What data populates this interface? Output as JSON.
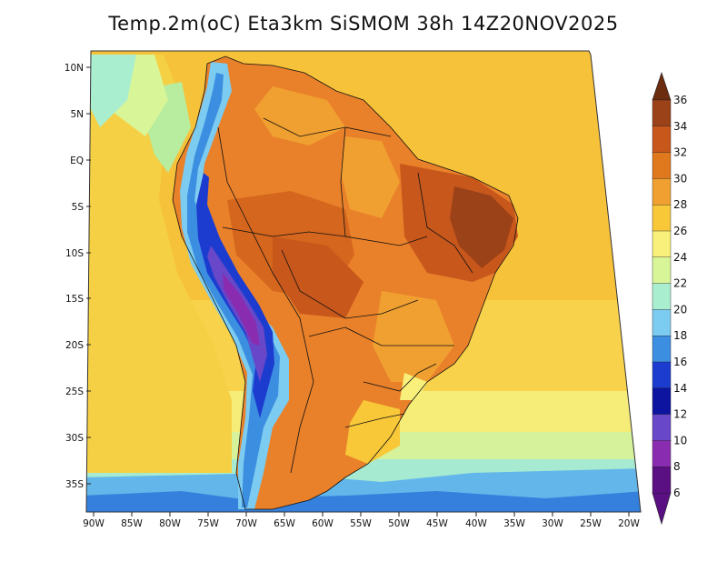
{
  "title": "Temp.2m(oC) Eta3km SiSMOM 38h 14Z20NOV2025",
  "map": {
    "lat_labels": [
      "10N",
      "5N",
      "EQ",
      "5S",
      "10S",
      "15S",
      "20S",
      "25S",
      "30S",
      "35S"
    ],
    "lon_labels": [
      "90W",
      "85W",
      "80W",
      "75W",
      "70W",
      "65W",
      "60W",
      "55W",
      "50W",
      "45W",
      "40W",
      "35W",
      "30W",
      "25W",
      "20W"
    ]
  },
  "colorbar": {
    "labels": [
      "36",
      "34",
      "32",
      "30",
      "28",
      "26",
      "24",
      "22",
      "20",
      "18",
      "16",
      "14",
      "12",
      "10",
      "8",
      "6"
    ],
    "colors": [
      "#6b2c10",
      "#9c4218",
      "#c8571c",
      "#e0781e",
      "#f0a030",
      "#f8c838",
      "#f8f07a",
      "#d8f598",
      "#aaeed0",
      "#7ccbf0",
      "#3c8ee0",
      "#1c3cd0",
      "#0c14a0",
      "#6848c8",
      "#8a2cb0",
      "#5a1082"
    ]
  }
}
